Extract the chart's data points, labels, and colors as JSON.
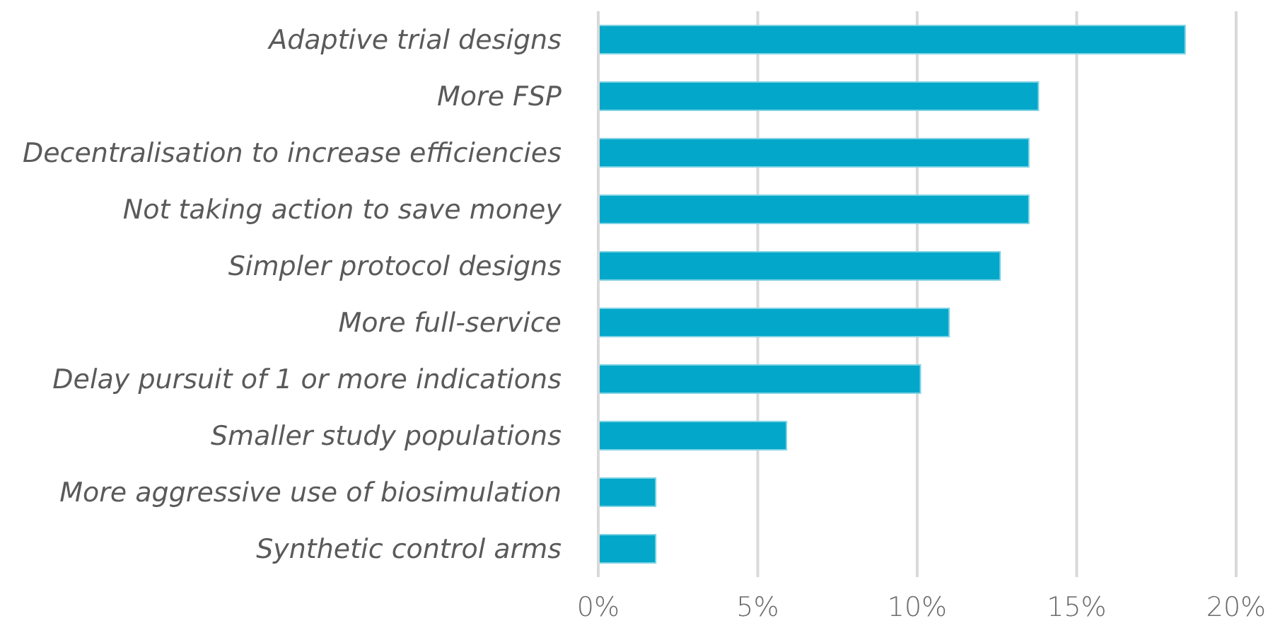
{
  "chart_data": {
    "type": "bar",
    "orientation": "horizontal",
    "categories": [
      "Adaptive trial designs ",
      "More FSP",
      "Decentralisation to increase efficiencies",
      "Not taking action to save money",
      "Simpler protocol designs",
      "More full-service",
      "Delay pursuit of 1 or more indications",
      "Smaller study populations ",
      "More aggressive use of biosimulation",
      "Synthetic control arms"
    ],
    "values": [
      18.4,
      13.8,
      13.5,
      13.5,
      12.6,
      11.0,
      10.1,
      5.9,
      1.8,
      1.8
    ],
    "color": "#02a7c9",
    "xlim": [
      0,
      20
    ],
    "xticks": [
      {
        "value": 0,
        "label": "0%"
      },
      {
        "value": 5,
        "label": "5%"
      },
      {
        "value": 10,
        "label": "10%"
      },
      {
        "value": 15,
        "label": "15%"
      },
      {
        "value": 20,
        "label": "20%"
      }
    ],
    "grid": "x"
  }
}
